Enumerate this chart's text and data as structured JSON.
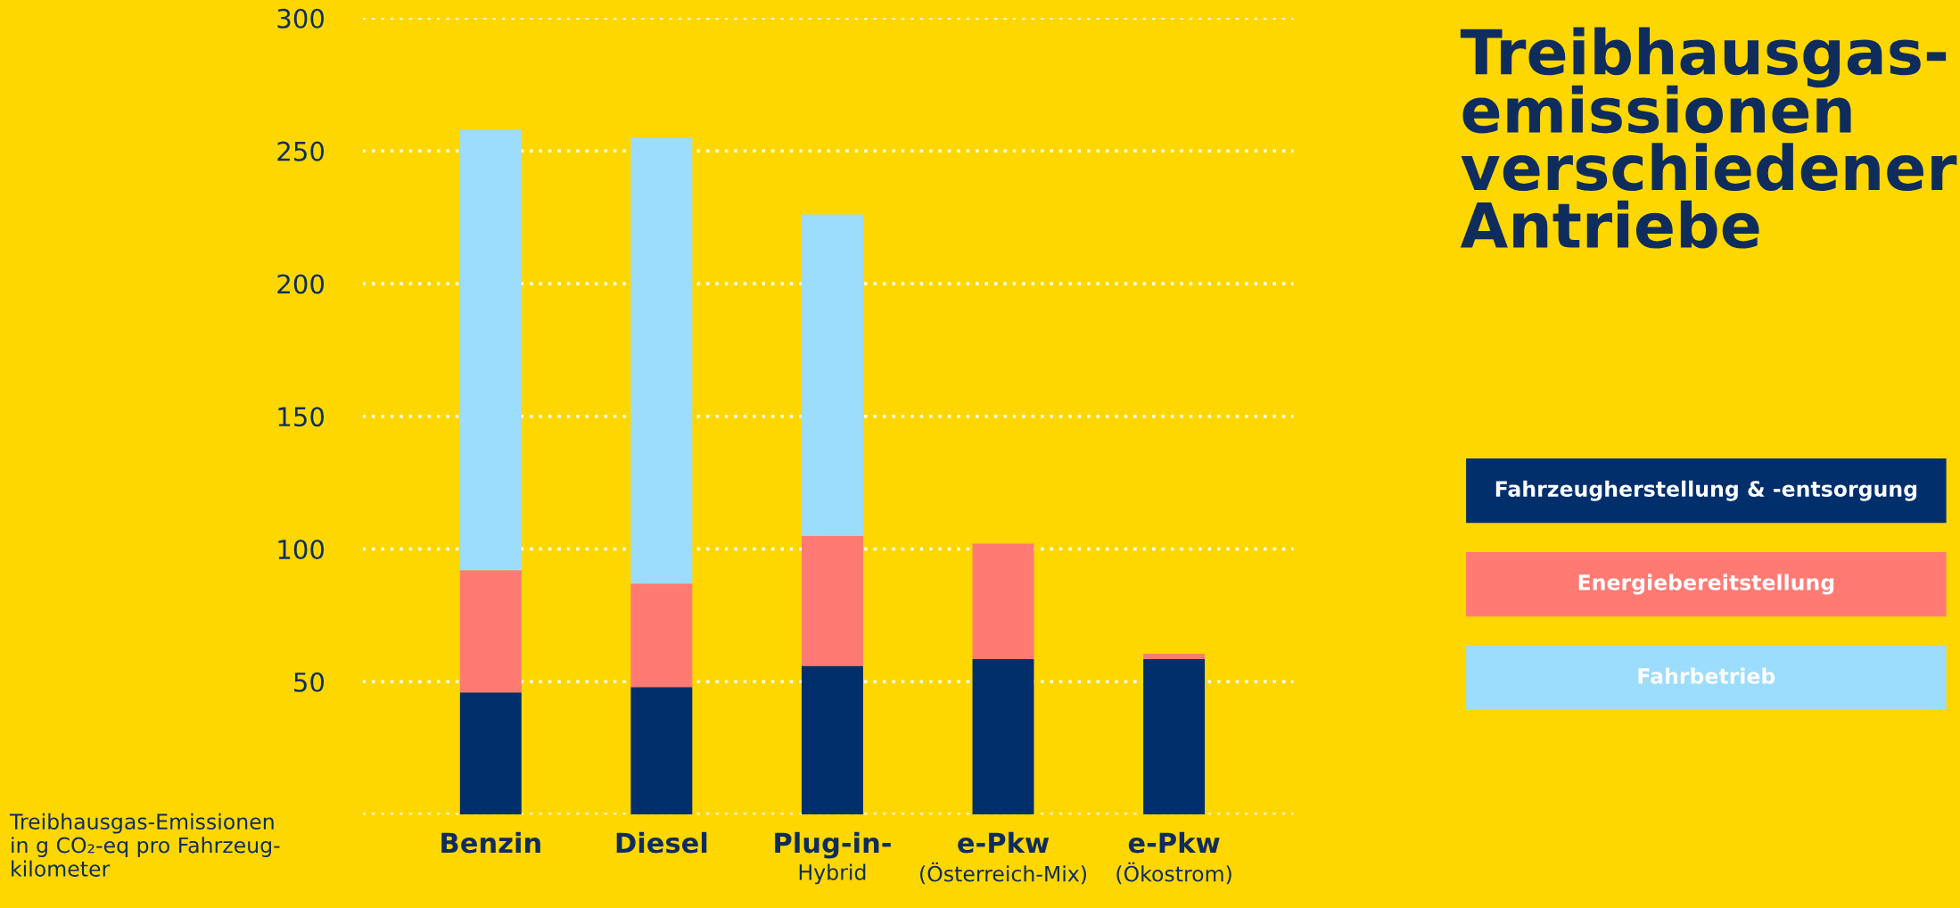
{
  "chart_data": {
    "type": "bar",
    "title": "Treibhausgas-\nemissionen\nverschiedener\nAntriebe",
    "ylabel": "Treibhausgas-Emissionen\nin g CO₂-eq pro Fahrzeug-\nkilometer",
    "categories": [
      "Benzin",
      "Diesel",
      "Plug-in-\nHybrid",
      "e-Pkw\n(Österreich-Mix)",
      "e-Pkw\n(Ökostrom)"
    ],
    "stacked": true,
    "series": [
      {
        "name": "Fahrzeugherstellung & -entsorgung",
        "color": "#002f6c",
        "values": [
          46,
          48,
          56,
          58.5,
          58.5
        ]
      },
      {
        "name": "Energiebereitstellung",
        "color": "#ff7a73",
        "values": [
          46,
          39,
          49,
          43.5,
          2
        ]
      },
      {
        "name": "Fahrbetrieb",
        "color": "#9cdcfc",
        "values": [
          166,
          168,
          121,
          0,
          0
        ]
      }
    ],
    "ylim": [
      0,
      300
    ],
    "yticks": [
      {
        "value": 0,
        "label": null
      },
      50,
      100,
      150,
      200,
      250,
      300
    ],
    "grid": "y",
    "legend": "right"
  }
}
